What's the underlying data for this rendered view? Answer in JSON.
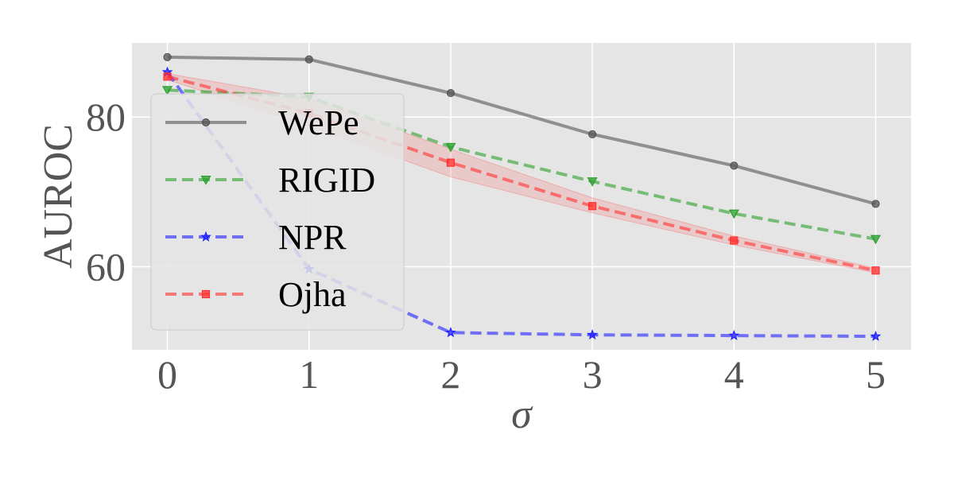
{
  "chart_data": {
    "type": "line",
    "title": "",
    "xlabel": "σ",
    "ylabel": "AUROC",
    "x": [
      0,
      1,
      2,
      3,
      4,
      5
    ],
    "xticks": [
      "0",
      "1",
      "2",
      "3",
      "4",
      "5"
    ],
    "yticks": [
      "60",
      "80"
    ],
    "ytick_values": [
      60,
      80
    ],
    "xlim": [
      -0.25,
      5.25
    ],
    "ylim": [
      48.9,
      89.9
    ],
    "grid": true,
    "legend_position": "left",
    "series": [
      {
        "name": "WePe",
        "values": [
          88.0,
          87.7,
          83.2,
          77.7,
          73.5,
          68.4
        ],
        "color": "#555555",
        "linestyle": "solid",
        "marker": "circle"
      },
      {
        "name": "RIGID",
        "values": [
          83.6,
          82.7,
          76.0,
          71.4,
          67.1,
          63.7
        ],
        "color": "#2ca02c",
        "linestyle": "dashed",
        "marker": "triangle-down"
      },
      {
        "name": "NPR",
        "values": [
          86.0,
          59.7,
          51.2,
          50.9,
          50.8,
          50.7
        ],
        "color": "#1f1fff",
        "linestyle": "dashed",
        "marker": "star"
      },
      {
        "name": "Ojha",
        "values": [
          85.4,
          80.5,
          73.9,
          68.1,
          63.5,
          59.5
        ],
        "color": "#ff3030",
        "linestyle": "dashed",
        "marker": "square",
        "band_lower": [
          85.0,
          78.8,
          72.0,
          67.2,
          62.9,
          59.2
        ],
        "band_upper": [
          85.8,
          82.5,
          75.7,
          69.2,
          64.1,
          59.8
        ]
      }
    ]
  }
}
